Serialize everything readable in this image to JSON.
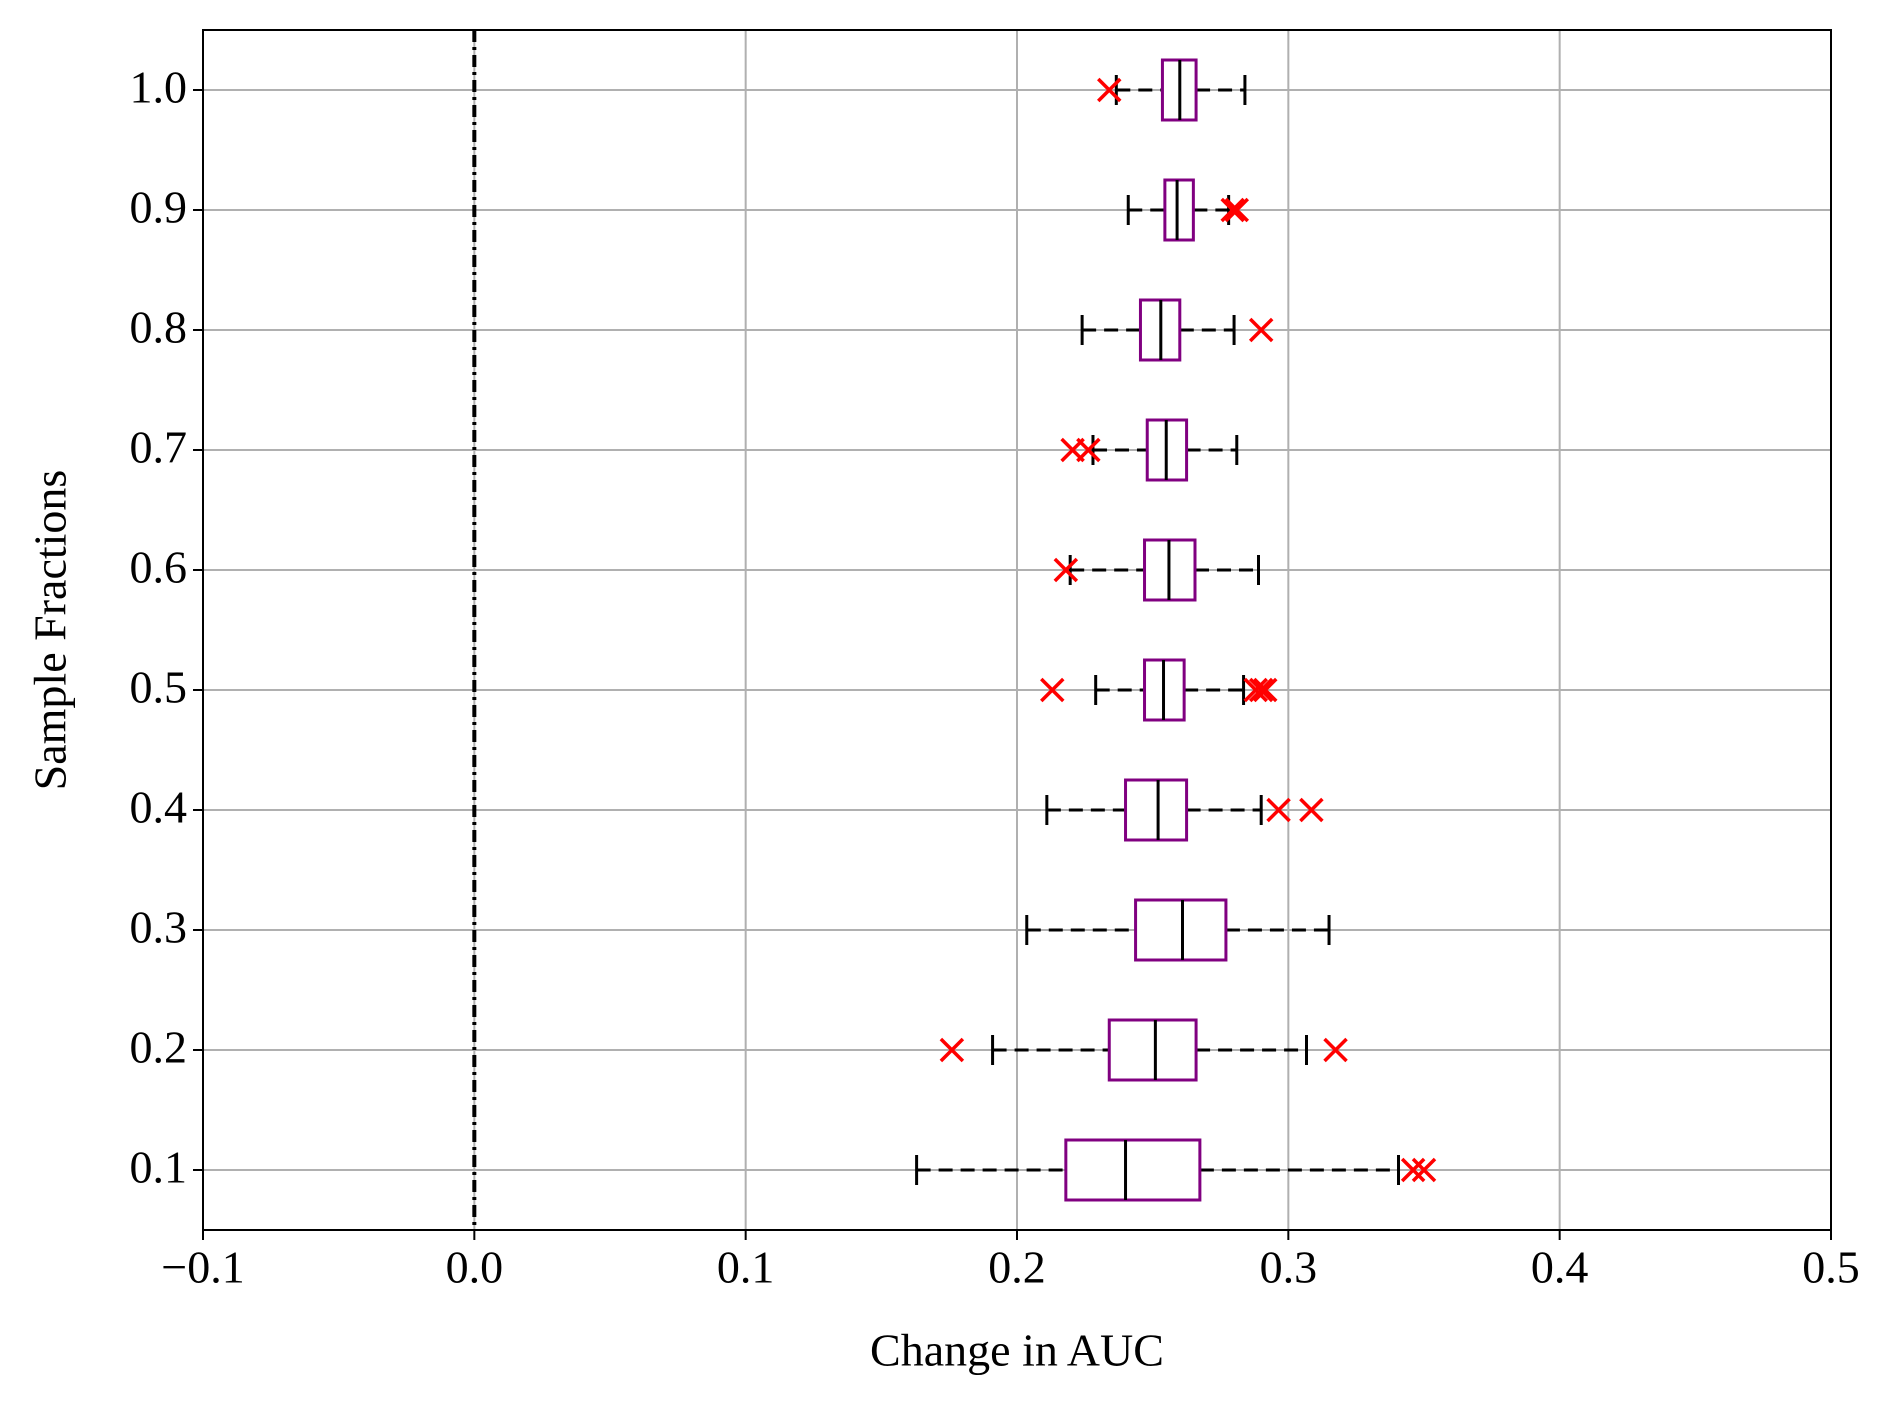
{
  "chart_data": {
    "type": "boxplot",
    "xlabel": "Change in AUC",
    "ylabel": "Sample Fractions",
    "xlim": [
      -0.1,
      0.5
    ],
    "xticks": [
      {
        "value": -0.1,
        "label": "−0.1"
      },
      {
        "value": 0,
        "label": "0.0"
      },
      0.1,
      0.2,
      0.3,
      0.4,
      0.5
    ],
    "ylim": [
      0.05,
      1.05
    ],
    "yticks": [
      0.1,
      0.2,
      0.3,
      0.4,
      0.5,
      0.6,
      0.7,
      0.8,
      0.9,
      {
        "value": 1,
        "label": "1.0"
      }
    ],
    "grid": true,
    "box_color": "#800080",
    "whisker_color": "#000000",
    "median_color": "#000000",
    "flier_color": "#ff0000",
    "reference_line": {
      "x": 0,
      "color": "#000000"
    },
    "boxes": [
      {
        "y": 1,
        "whislo": 0.2366,
        "q1": 0.2536,
        "med": 0.26,
        "q3": 0.266,
        "whishi": 0.284,
        "fliers": [
          0.234
        ]
      },
      {
        "y": 0.9,
        "whislo": 0.241,
        "q1": 0.2545,
        "med": 0.259,
        "q3": 0.265,
        "whishi": 0.278,
        "fliers": [
          0.2795,
          0.281
        ]
      },
      {
        "y": 0.8,
        "whislo": 0.224,
        "q1": 0.2455,
        "med": 0.253,
        "q3": 0.26,
        "whishi": 0.28,
        "fliers": [
          0.29
        ]
      },
      {
        "y": 0.7,
        "whislo": 0.228,
        "q1": 0.248,
        "med": 0.255,
        "q3": 0.2625,
        "whishi": 0.281,
        "fliers": [
          0.2205,
          0.2263
        ]
      },
      {
        "y": 0.6,
        "whislo": 0.2196,
        "q1": 0.247,
        "med": 0.256,
        "q3": 0.2656,
        "whishi": 0.289,
        "fliers": [
          0.218
        ]
      },
      {
        "y": 0.5,
        "whislo": 0.229,
        "q1": 0.247,
        "med": 0.254,
        "q3": 0.2616,
        "whishi": 0.2835,
        "fliers": [
          0.213,
          0.288,
          0.29,
          0.2915
        ]
      },
      {
        "y": 0.4,
        "whislo": 0.211,
        "q1": 0.24,
        "med": 0.252,
        "q3": 0.2625,
        "whishi": 0.29,
        "fliers": [
          0.2964,
          0.3085
        ]
      },
      {
        "y": 0.3,
        "whislo": 0.2036,
        "q1": 0.2437,
        "med": 0.261,
        "q3": 0.277,
        "whishi": 0.315,
        "fliers": []
      },
      {
        "y": 0.2,
        "whislo": 0.191,
        "q1": 0.234,
        "med": 0.251,
        "q3": 0.266,
        "whishi": 0.3067,
        "fliers": [
          0.176,
          0.3174
        ]
      },
      {
        "y": 0.1,
        "whislo": 0.163,
        "q1": 0.218,
        "med": 0.24,
        "q3": 0.2674,
        "whishi": 0.3406,
        "fliers": [
          0.346,
          0.35
        ]
      }
    ]
  }
}
